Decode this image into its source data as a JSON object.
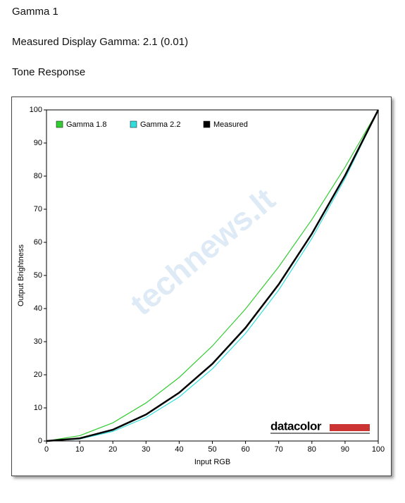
{
  "header": {
    "title": "Gamma 1",
    "measured": "Measured Display Gamma: 2.1 (0.01)",
    "section": "Tone Response"
  },
  "chart_data": {
    "type": "line",
    "x_label": "Input RGB",
    "y_label": "Output Brightness",
    "logo": "datacolor",
    "watermark": "technews.lt",
    "x": [
      0,
      10,
      20,
      30,
      40,
      50,
      60,
      70,
      80,
      90,
      100
    ],
    "series": [
      {
        "name": "Gamma 1.8",
        "color": "#33cc33",
        "values": [
          0,
          1.6,
          5.5,
          11.5,
          19.2,
          28.7,
          39.9,
          52.6,
          66.9,
          82.7,
          100
        ]
      },
      {
        "name": "Gamma 2.2",
        "color": "#33dddd",
        "values": [
          0,
          0.6,
          2.9,
          7.1,
          13.3,
          21.8,
          32.5,
          45.6,
          61.2,
          79.3,
          100
        ]
      },
      {
        "name": "Measured",
        "color": "#000000",
        "values": [
          0,
          0.8,
          3.4,
          8.0,
          14.6,
          23.3,
          34.2,
          47.3,
          62.6,
          80.2,
          100
        ]
      }
    ],
    "xlim": [
      0,
      100
    ],
    "ylim": [
      0,
      100
    ],
    "xticks": [
      0,
      10,
      20,
      30,
      40,
      50,
      60,
      70,
      80,
      90,
      100
    ],
    "yticks": [
      0,
      10,
      20,
      30,
      40,
      50,
      60,
      70,
      80,
      90,
      100
    ],
    "grid": false
  }
}
